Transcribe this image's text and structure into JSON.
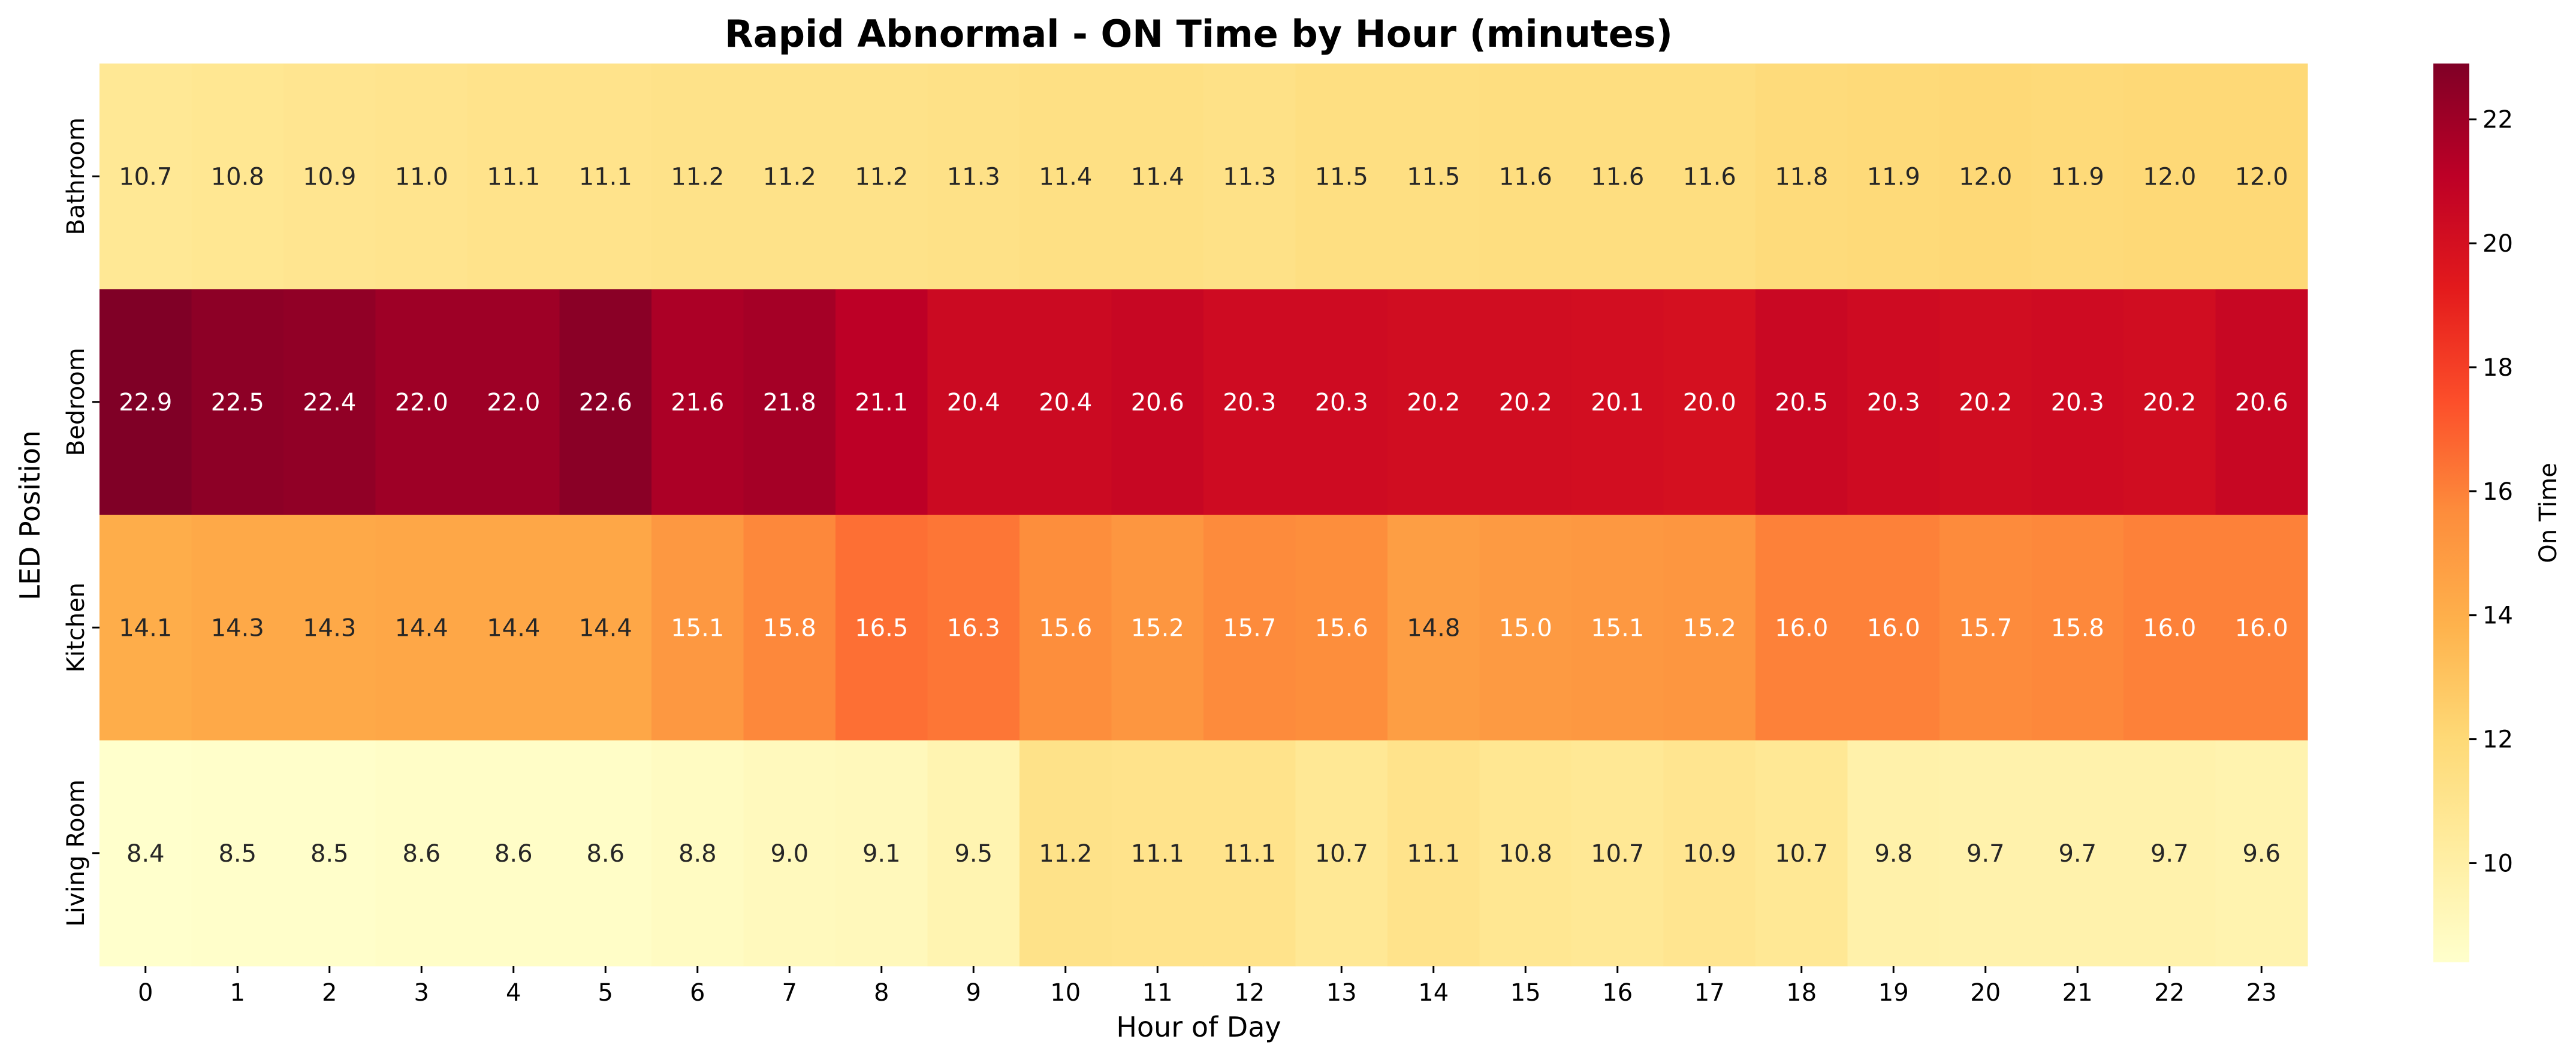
{
  "chart_data": {
    "type": "heatmap",
    "title": "Rapid Abnormal - ON Time by Hour (minutes)",
    "xlabel": "Hour of Day",
    "ylabel": "LED Position",
    "x": [
      "0",
      "1",
      "2",
      "3",
      "4",
      "5",
      "6",
      "7",
      "8",
      "9",
      "10",
      "11",
      "12",
      "13",
      "14",
      "15",
      "16",
      "17",
      "18",
      "19",
      "20",
      "21",
      "22",
      "23"
    ],
    "y": [
      "Bathroom",
      "Bedroom",
      "Kitchen",
      "Living Room"
    ],
    "values": [
      [
        10.7,
        10.8,
        10.9,
        11.0,
        11.1,
        11.1,
        11.2,
        11.2,
        11.2,
        11.3,
        11.4,
        11.4,
        11.3,
        11.5,
        11.5,
        11.6,
        11.6,
        11.6,
        11.8,
        11.9,
        12.0,
        11.9,
        12.0,
        12.0
      ],
      [
        22.9,
        22.5,
        22.4,
        22.0,
        22.0,
        22.6,
        21.6,
        21.8,
        21.1,
        20.4,
        20.4,
        20.6,
        20.3,
        20.3,
        20.2,
        20.2,
        20.1,
        20.0,
        20.5,
        20.3,
        20.2,
        20.3,
        20.2,
        20.6
      ],
      [
        14.1,
        14.3,
        14.3,
        14.4,
        14.4,
        14.4,
        15.1,
        15.8,
        16.5,
        16.3,
        15.6,
        15.2,
        15.7,
        15.6,
        14.8,
        15.0,
        15.1,
        15.2,
        16.0,
        16.0,
        15.7,
        15.8,
        16.0,
        16.0
      ],
      [
        8.4,
        8.5,
        8.5,
        8.6,
        8.6,
        8.6,
        8.8,
        9.0,
        9.1,
        9.5,
        11.2,
        11.1,
        11.1,
        10.7,
        11.1,
        10.8,
        10.7,
        10.9,
        10.7,
        9.8,
        9.7,
        9.7,
        9.7,
        9.6
      ]
    ],
    "colorbar": {
      "label": "On Time",
      "min": 8.4,
      "max": 22.9,
      "ticks": [
        10,
        12,
        14,
        16,
        18,
        20,
        22
      ],
      "colormap": [
        "#ffffcc",
        "#ffeda0",
        "#fed976",
        "#feb24c",
        "#fd8d3c",
        "#fc4e2a",
        "#e31a1c",
        "#bd0026",
        "#800026"
      ]
    },
    "grid": false
  }
}
